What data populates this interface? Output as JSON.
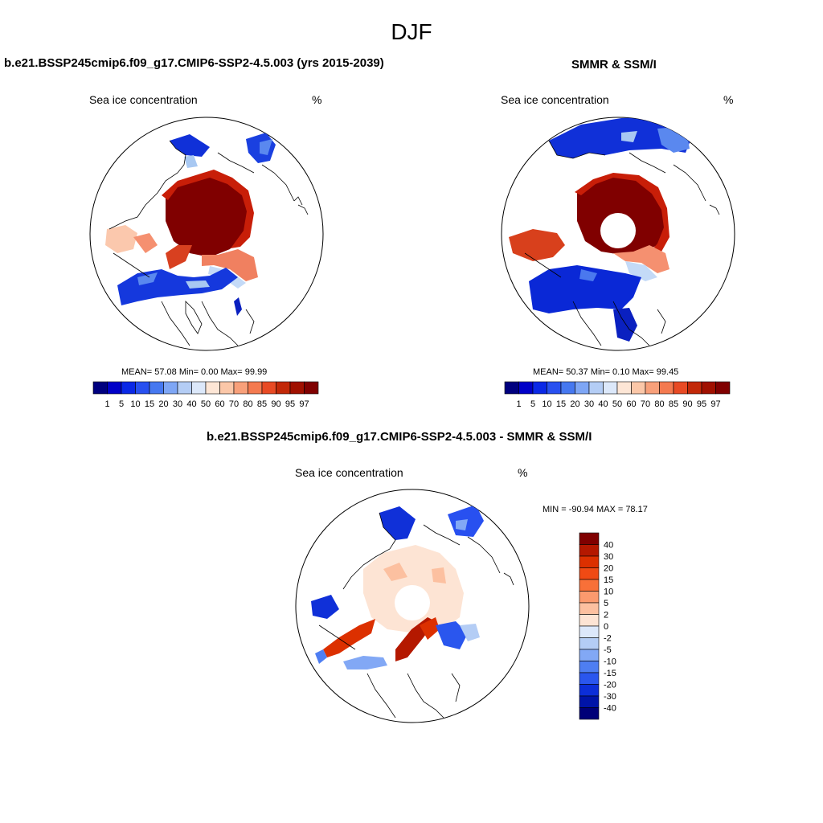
{
  "title": "DJF",
  "panels": {
    "model": {
      "title": "b.e21.BSSP245cmip6.f09_g17.CMIP6-SSP2-4.5.003 (yrs 2015-2039)",
      "variable": "Sea ice concentration",
      "units": "%",
      "stats": "MEAN=  57.08  Min=   0.00  Max=  99.99"
    },
    "obs": {
      "title": "SMMR & SSM/I",
      "variable": "Sea ice concentration",
      "units": "%",
      "stats": "MEAN=  50.37  Min=   0.10  Max=  99.45"
    },
    "diff": {
      "title": "b.e21.BSSP245cmip6.f09_g17.CMIP6-SSP2-4.5.003 - SMMR & SSM/I",
      "variable": "Sea ice concentration",
      "units": "%",
      "stats": "MIN = -90.94 MAX =  78.17"
    }
  },
  "legend_conc": {
    "labels": [
      "1",
      "5",
      "10",
      "15",
      "20",
      "30",
      "40",
      "50",
      "60",
      "70",
      "80",
      "85",
      "90",
      "95",
      "97"
    ],
    "colors": [
      "#00007f",
      "#0000c8",
      "#0a28e6",
      "#2850f0",
      "#4678f0",
      "#7ea6f5",
      "#b4cdf5",
      "#dce8fa",
      "#fde6d6",
      "#fbc7a8",
      "#f8a07a",
      "#f47a50",
      "#e84a24",
      "#c22808",
      "#a01000",
      "#800000"
    ]
  },
  "legend_diff": {
    "labels": [
      "40",
      "30",
      "20",
      "15",
      "10",
      "5",
      "2",
      "0",
      "-2",
      "-5",
      "-10",
      "-15",
      "-20",
      "-30",
      "-40"
    ],
    "colors": [
      "#800000",
      "#b41800",
      "#dc3000",
      "#f04a14",
      "#f87038",
      "#fb9a6e",
      "#fcc0a0",
      "#fde4d4",
      "#dce8fa",
      "#b4cdf5",
      "#82a8f5",
      "#4e7ef2",
      "#2a56ee",
      "#0c2ed8",
      "#0014a8",
      "#000078"
    ]
  }
}
